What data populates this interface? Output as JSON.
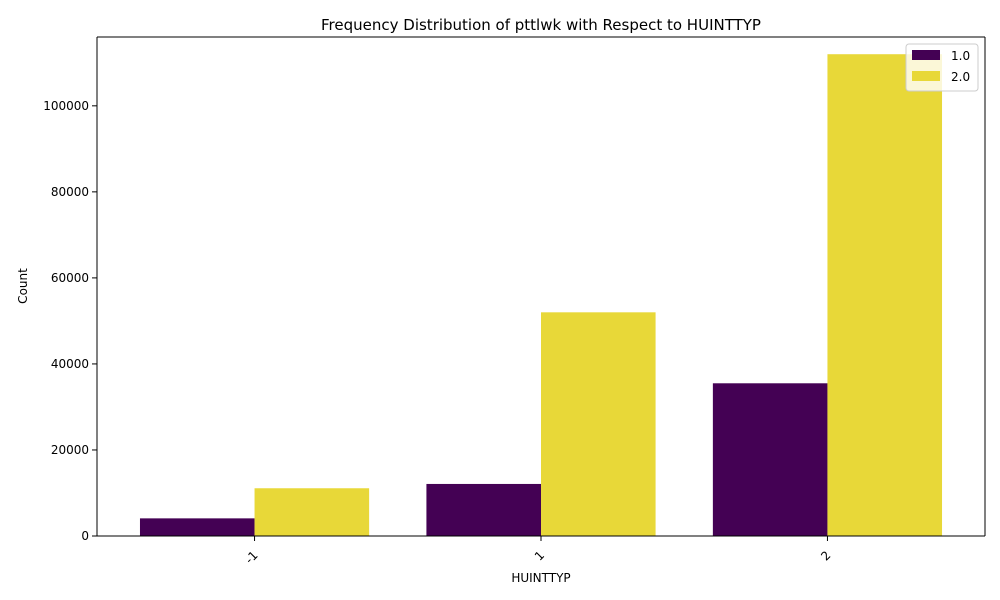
{
  "chart_data": {
    "type": "bar",
    "title": "Frequency Distribution of pttlwk with Respect to HUINTTYP",
    "xlabel": "HUINTTYP",
    "ylabel": "Count",
    "categories": [
      "-1",
      "1",
      "2"
    ],
    "series": [
      {
        "name": "1.0",
        "color": "#440154",
        "values": [
          4100,
          12100,
          35500
        ]
      },
      {
        "name": "2.0",
        "color": "#E8D838",
        "values": [
          11100,
          52000,
          112000
        ]
      }
    ],
    "ylim": [
      0,
      116000
    ],
    "yticks": [
      0,
      20000,
      40000,
      60000,
      80000,
      100000
    ],
    "xtick_rotation": 45,
    "grid": false,
    "legend_position": "top-right"
  }
}
